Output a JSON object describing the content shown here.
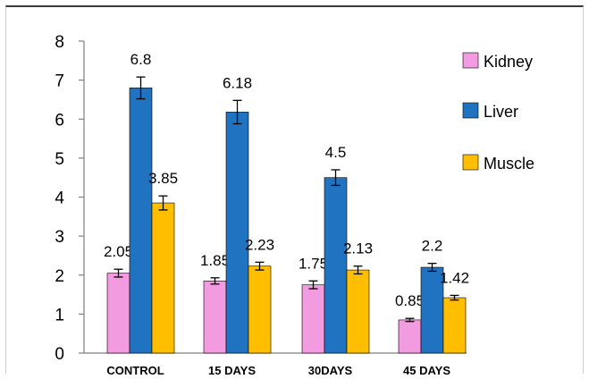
{
  "chart_data": {
    "type": "bar",
    "categories": [
      "CONTROL",
      "15 DAYS",
      "30DAYS",
      "45 DAYS"
    ],
    "series": [
      {
        "name": "Kidney",
        "values": [
          2.05,
          1.85,
          1.75,
          0.85
        ],
        "errors": [
          0.1,
          0.08,
          0.1,
          0.04
        ],
        "color": "#f39be0"
      },
      {
        "name": "Liver",
        "values": [
          6.8,
          6.18,
          4.5,
          2.2
        ],
        "errors": [
          0.28,
          0.3,
          0.2,
          0.1
        ],
        "color": "#1f73c0"
      },
      {
        "name": "Muscle",
        "values": [
          3.85,
          2.23,
          2.13,
          1.42
        ],
        "errors": [
          0.18,
          0.1,
          0.1,
          0.06
        ],
        "color": "#ffbf00"
      }
    ],
    "data_labels": [
      [
        "2.05",
        "1.85",
        "1.75",
        "0.85"
      ],
      [
        "6.8",
        "6.18",
        "4.5",
        "2.2"
      ],
      [
        "3.85",
        "2.23",
        "2.13",
        "1.42"
      ]
    ],
    "ylim": [
      0,
      8
    ],
    "yticks": [
      0,
      1,
      2,
      3,
      4,
      5,
      6,
      7,
      8
    ],
    "legend_position": "right",
    "grid": false
  }
}
